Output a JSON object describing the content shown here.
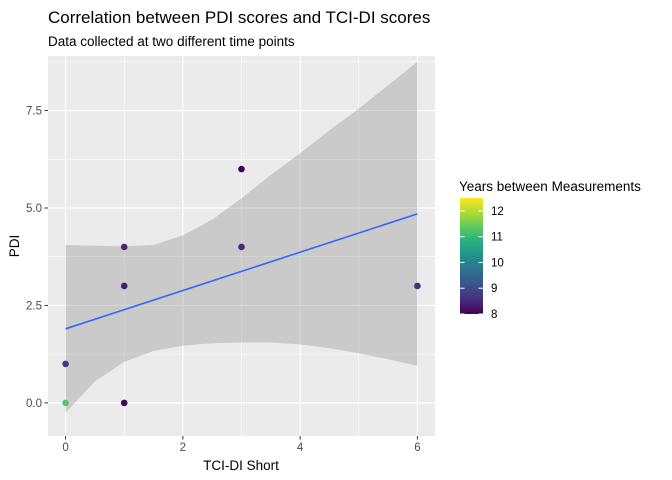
{
  "chart_data": {
    "type": "scatter",
    "title": "Correlation between PDI scores and TCI-DI scores",
    "subtitle": "Data collected at two different time points",
    "xlabel": "TCI-DI Short",
    "ylabel": "PDI",
    "xlim": [
      -0.3,
      6.3
    ],
    "ylim": [
      -0.85,
      8.9
    ],
    "x_ticks": [
      0,
      2,
      4,
      6
    ],
    "x_tick_labels": [
      "0",
      "2",
      "4",
      "6"
    ],
    "y_ticks": [
      0,
      2.5,
      5,
      7.5
    ],
    "y_tick_labels": [
      "0.0",
      "2.5",
      "5.0",
      "7.5"
    ],
    "grid": true,
    "points": [
      {
        "x": 0,
        "y": 0,
        "years": 11.3
      },
      {
        "x": 0,
        "y": 1,
        "years": 8.7
      },
      {
        "x": 1,
        "y": 0,
        "years": 8.0
      },
      {
        "x": 1,
        "y": 3,
        "years": 8.4
      },
      {
        "x": 1,
        "y": 4,
        "years": 8.5
      },
      {
        "x": 3,
        "y": 6,
        "years": 8.0
      },
      {
        "x": 3,
        "y": 4,
        "years": 8.5
      },
      {
        "x": 6,
        "y": 3,
        "years": 8.6
      }
    ],
    "fit_line": {
      "x": [
        0,
        6
      ],
      "y": [
        1.9,
        4.85
      ],
      "color": "#3366FF"
    },
    "confidence_band": {
      "color": "#999999",
      "x": [
        0,
        0.5,
        1,
        1.5,
        2,
        2.5,
        3,
        3.5,
        4,
        4.5,
        5,
        5.5,
        6
      ],
      "lower": [
        -0.25,
        0.55,
        1.05,
        1.33,
        1.47,
        1.53,
        1.55,
        1.55,
        1.5,
        1.4,
        1.27,
        1.12,
        0.95
      ],
      "upper": [
        4.05,
        4.03,
        4.02,
        4.05,
        4.3,
        4.7,
        5.25,
        5.85,
        6.4,
        7.0,
        7.55,
        8.15,
        8.75
      ]
    },
    "legend": {
      "title": "Years between Measurements",
      "position": "right",
      "type": "colorbar",
      "palette": "viridis",
      "range": [
        8,
        12.5
      ],
      "ticks": [
        8,
        9,
        10,
        11,
        12
      ],
      "tick_labels": [
        "8",
        "9",
        "10",
        "11",
        "12"
      ]
    },
    "panel_color": "#EBEBEB",
    "gridline_color": "#FFFFFF"
  }
}
